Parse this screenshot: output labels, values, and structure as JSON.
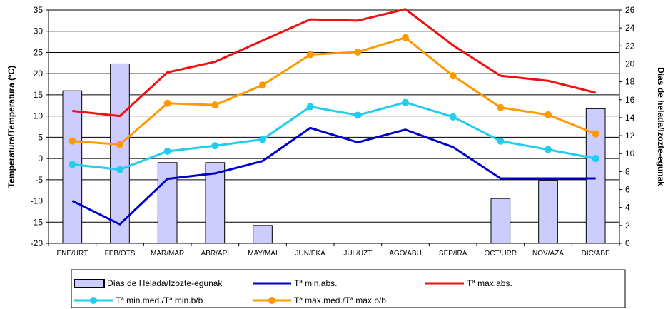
{
  "chart_data": {
    "type": "bar+line",
    "categories": [
      "ENE/URT",
      "FEB/OTS",
      "MAR/MAR",
      "ABR/API",
      "MAY/MAI",
      "JUN/EKA",
      "JUL/UZT",
      "AGO/ABU",
      "SEP/IRA",
      "OCT/URR",
      "NOV/AZA",
      "DIC/ABE"
    ],
    "ylabel_left": "Temperatura/Temperatura (ºC)",
    "ylabel_right": "Días de helada/Izozte-egunak",
    "ylim_left": [
      -20,
      35
    ],
    "ylim_right": [
      0,
      26
    ],
    "yticks_left": [
      -20,
      -15,
      -10,
      -5,
      0,
      5,
      10,
      15,
      20,
      25,
      30,
      35
    ],
    "yticks_right": [
      0,
      2,
      4,
      6,
      8,
      10,
      12,
      14,
      16,
      18,
      20,
      22,
      24,
      26
    ],
    "grid": true,
    "legend_position": "bottom",
    "bars": {
      "name": "Días de Helada/Izozte-egunak",
      "axis": "right",
      "color": "#CCCCFF",
      "values": [
        17,
        20,
        9,
        9,
        2,
        0,
        0,
        0,
        0,
        5,
        7,
        15
      ]
    },
    "series": [
      {
        "name": "Tª min.abs.",
        "axis": "left",
        "color": "#0000CC",
        "markers": false,
        "values": [
          -10,
          -15.5,
          -4.8,
          -3.5,
          -0.6,
          7.2,
          3.8,
          6.8,
          2.7,
          -4.7,
          -4.7,
          -4.7
        ]
      },
      {
        "name": "Tª max.abs.",
        "axis": "left",
        "color": "#EE1111",
        "markers": false,
        "values": [
          11.2,
          10,
          20.3,
          22.8,
          27.8,
          32.8,
          32.5,
          35.2,
          26.7,
          19.5,
          18.3,
          15.5
        ]
      },
      {
        "name": "Tª min.med./Tª min.b/b",
        "axis": "left",
        "color": "#22CCEE",
        "markers": true,
        "values": [
          -1.4,
          -2.6,
          1.7,
          3,
          4.5,
          12.2,
          10.2,
          13.2,
          9.8,
          4.1,
          2.1,
          0
        ]
      },
      {
        "name": "Tª max.med./Tª max.b/b",
        "axis": "left",
        "color": "#FF9900",
        "markers": true,
        "values": [
          4.1,
          3.3,
          13,
          12.6,
          17.3,
          24.5,
          25.1,
          28.5,
          19.5,
          12,
          10.3,
          5.8
        ]
      }
    ]
  }
}
